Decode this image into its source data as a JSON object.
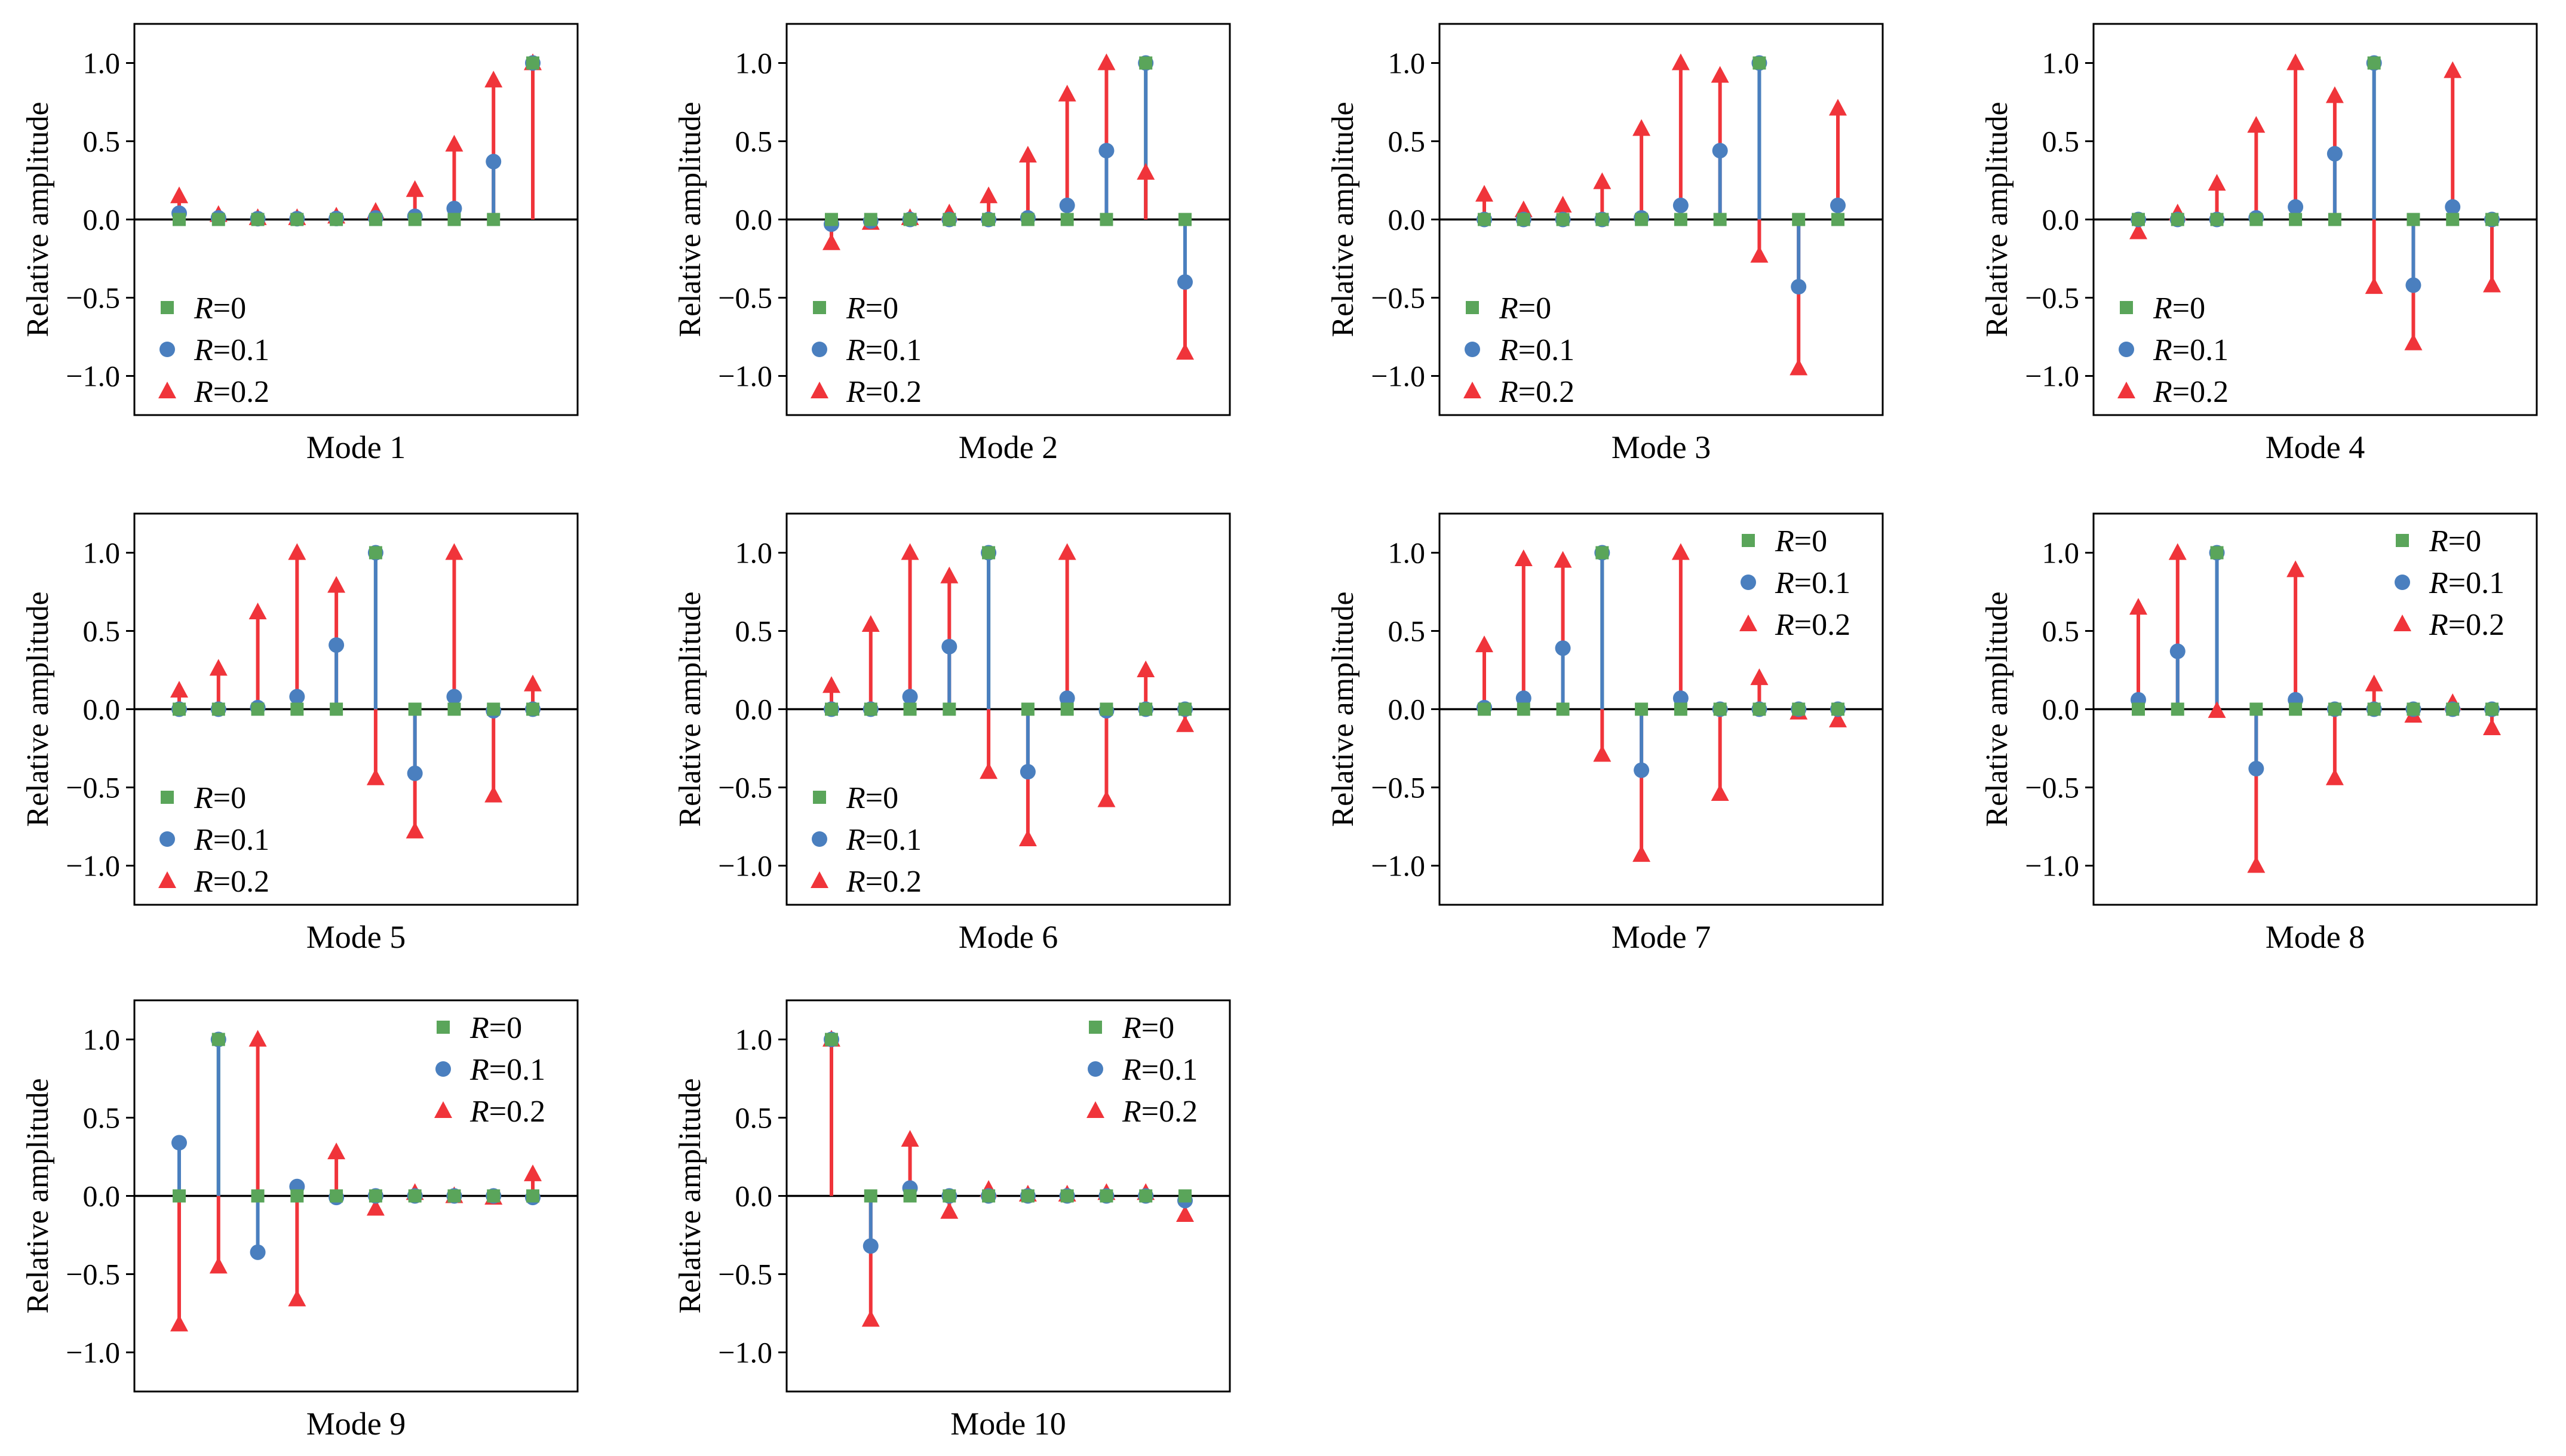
{
  "colors": {
    "r0": "#5aa55a",
    "r01": "#4a7fbf",
    "r02": "#f0343a"
  },
  "y_ticks": [
    1.0,
    0.5,
    0.0,
    -0.5,
    -1.0
  ],
  "y_tick_labels": [
    "1.0",
    "0.5",
    "0.0",
    "−0.5",
    "−1.0"
  ],
  "legend": [
    {
      "key": "r0",
      "prefix": "R",
      "suffix": "=0",
      "marker": "square"
    },
    {
      "key": "r01",
      "prefix": "R",
      "suffix": "=0.1",
      "marker": "circle"
    },
    {
      "key": "r02",
      "prefix": "R",
      "suffix": "=0.2",
      "marker": "triangle"
    }
  ],
  "chart_data": [
    {
      "type": "stem",
      "title": "Mode 1",
      "ylabel": "Relative amplitude",
      "ylim": [
        -1.25,
        1.25
      ],
      "x": [
        1,
        2,
        3,
        4,
        5,
        6,
        7,
        8,
        9,
        10
      ],
      "legend_position": "bottom-left",
      "series": [
        {
          "name": "R=0",
          "values": [
            0,
            0,
            0,
            0,
            0,
            0,
            0,
            0,
            0,
            1.0
          ]
        },
        {
          "name": "R=0.1",
          "values": [
            0.04,
            0.01,
            0.005,
            0.005,
            0.006,
            0.01,
            0.02,
            0.07,
            0.37,
            1.0
          ]
        },
        {
          "name": "R=0.2",
          "values": [
            0.15,
            0.03,
            0.01,
            0.01,
            0.02,
            0.05,
            0.19,
            0.48,
            0.89,
            1.0
          ]
        }
      ]
    },
    {
      "type": "stem",
      "title": "Mode 2",
      "ylabel": "Relative amplitude",
      "ylim": [
        -1.25,
        1.25
      ],
      "x": [
        1,
        2,
        3,
        4,
        5,
        6,
        7,
        8,
        9,
        10
      ],
      "legend_position": "bottom-left",
      "series": [
        {
          "name": "R=0",
          "values": [
            0,
            0,
            0,
            0,
            0,
            0,
            0,
            0,
            1.0,
            0
          ]
        },
        {
          "name": "R=0.1",
          "values": [
            -0.03,
            -0.01,
            0.0,
            0.0,
            0.0,
            0.01,
            0.09,
            0.44,
            1.0,
            -0.4
          ]
        },
        {
          "name": "R=0.2",
          "values": [
            -0.15,
            -0.02,
            0.01,
            0.04,
            0.15,
            0.41,
            0.8,
            1.0,
            0.3,
            -0.85
          ]
        }
      ]
    },
    {
      "type": "stem",
      "title": "Mode 3",
      "ylabel": "Relative amplitude",
      "ylim": [
        -1.25,
        1.25
      ],
      "x": [
        1,
        2,
        3,
        4,
        5,
        6,
        7,
        8,
        9,
        10
      ],
      "legend_position": "bottom-left",
      "series": [
        {
          "name": "R=0",
          "values": [
            0,
            0,
            0,
            0,
            0,
            0,
            0,
            1.0,
            0,
            0
          ]
        },
        {
          "name": "R=0.1",
          "values": [
            0.0,
            0.0,
            0.0,
            0.0,
            0.01,
            0.09,
            0.44,
            1.0,
            -0.43,
            0.09
          ]
        },
        {
          "name": "R=0.2",
          "values": [
            0.16,
            0.06,
            0.09,
            0.24,
            0.58,
            1.0,
            0.92,
            -0.23,
            -0.95,
            0.71
          ]
        }
      ]
    },
    {
      "type": "stem",
      "title": "Mode 4",
      "ylabel": "Relative amplitude",
      "ylim": [
        -1.25,
        1.25
      ],
      "x": [
        1,
        2,
        3,
        4,
        5,
        6,
        7,
        8,
        9,
        10
      ],
      "legend_position": "bottom-left",
      "series": [
        {
          "name": "R=0",
          "values": [
            0,
            0,
            0,
            0,
            0,
            0,
            1.0,
            0,
            0,
            0
          ]
        },
        {
          "name": "R=0.1",
          "values": [
            0.0,
            0.0,
            0.0,
            0.01,
            0.08,
            0.42,
            1.0,
            -0.42,
            0.08,
            0.0
          ]
        },
        {
          "name": "R=0.2",
          "values": [
            -0.08,
            0.04,
            0.23,
            0.6,
            1.0,
            0.79,
            -0.43,
            -0.79,
            0.95,
            -0.42
          ]
        }
      ]
    },
    {
      "type": "stem",
      "title": "Mode 5",
      "ylabel": "Relative amplitude",
      "ylim": [
        -1.25,
        1.25
      ],
      "x": [
        1,
        2,
        3,
        4,
        5,
        6,
        7,
        8,
        9,
        10
      ],
      "legend_position": "bottom-left",
      "series": [
        {
          "name": "R=0",
          "values": [
            0,
            0,
            0,
            0,
            0,
            1.0,
            0,
            0,
            0,
            0
          ]
        },
        {
          "name": "R=0.1",
          "values": [
            0.0,
            0.0,
            0.01,
            0.08,
            0.41,
            1.0,
            -0.41,
            0.08,
            -0.01,
            0.0
          ]
        },
        {
          "name": "R=0.2",
          "values": [
            0.12,
            0.26,
            0.62,
            1.0,
            0.79,
            -0.44,
            -0.78,
            1.0,
            -0.55,
            0.16
          ]
        }
      ]
    },
    {
      "type": "stem",
      "title": "Mode 6",
      "ylabel": "Relative amplitude",
      "ylim": [
        -1.25,
        1.25
      ],
      "x": [
        1,
        2,
        3,
        4,
        5,
        6,
        7,
        8,
        9,
        10
      ],
      "legend_position": "bottom-left",
      "series": [
        {
          "name": "R=0",
          "values": [
            0,
            0,
            0,
            0,
            1.0,
            0,
            0,
            0,
            0,
            0
          ]
        },
        {
          "name": "R=0.1",
          "values": [
            0.0,
            0.0,
            0.08,
            0.4,
            1.0,
            -0.4,
            0.07,
            -0.01,
            0.0,
            0.0
          ]
        },
        {
          "name": "R=0.2",
          "values": [
            0.15,
            0.54,
            1.0,
            0.85,
            -0.4,
            -0.83,
            1.0,
            -0.58,
            0.25,
            -0.1
          ]
        }
      ]
    },
    {
      "type": "stem",
      "title": "Mode 7",
      "ylabel": "Relative amplitude",
      "ylim": [
        -1.25,
        1.25
      ],
      "x": [
        1,
        2,
        3,
        4,
        5,
        6,
        7,
        8,
        9,
        10
      ],
      "legend_position": "top-right",
      "series": [
        {
          "name": "R=0",
          "values": [
            0,
            0,
            0,
            1.0,
            0,
            0,
            0,
            0,
            0,
            0
          ]
        },
        {
          "name": "R=0.1",
          "values": [
            0.01,
            0.07,
            0.39,
            1.0,
            -0.39,
            0.07,
            0.0,
            0.0,
            0.0,
            0.0
          ]
        },
        {
          "name": "R=0.2",
          "values": [
            0.41,
            0.96,
            0.95,
            -0.29,
            -0.93,
            1.0,
            -0.54,
            0.2,
            -0.02,
            -0.07
          ]
        }
      ]
    },
    {
      "type": "stem",
      "title": "Mode 8",
      "ylabel": "Relative amplitude",
      "ylim": [
        -1.25,
        1.25
      ],
      "x": [
        1,
        2,
        3,
        4,
        5,
        6,
        7,
        8,
        9,
        10
      ],
      "legend_position": "top-right",
      "series": [
        {
          "name": "R=0",
          "values": [
            0,
            0,
            1.0,
            0,
            0,
            0,
            0,
            0,
            0,
            0
          ]
        },
        {
          "name": "R=0.1",
          "values": [
            0.06,
            0.37,
            1.0,
            -0.38,
            0.06,
            0.0,
            0.0,
            0.0,
            0.0,
            0.0
          ]
        },
        {
          "name": "R=0.2",
          "values": [
            0.65,
            1.0,
            -0.01,
            -1.0,
            0.89,
            -0.44,
            0.16,
            -0.04,
            0.04,
            -0.12
          ]
        }
      ]
    },
    {
      "type": "stem",
      "title": "Mode 9",
      "ylabel": "Relative amplitude",
      "ylim": [
        -1.25,
        1.25
      ],
      "x": [
        1,
        2,
        3,
        4,
        5,
        6,
        7,
        8,
        9,
        10
      ],
      "legend_position": "top-right",
      "series": [
        {
          "name": "R=0",
          "values": [
            0,
            1.0,
            0,
            0,
            0,
            0,
            0,
            0,
            0,
            0
          ]
        },
        {
          "name": "R=0.1",
          "values": [
            0.34,
            1.0,
            -0.36,
            0.06,
            -0.01,
            0.0,
            0.0,
            0.0,
            0.0,
            -0.01
          ]
        },
        {
          "name": "R=0.2",
          "values": [
            -0.82,
            -0.45,
            1.0,
            -0.66,
            0.28,
            -0.08,
            0.02,
            0.0,
            -0.01,
            0.14
          ]
        }
      ]
    },
    {
      "type": "stem",
      "title": "Mode 10",
      "ylabel": "Relative amplitude",
      "ylim": [
        -1.25,
        1.25
      ],
      "x": [
        1,
        2,
        3,
        4,
        5,
        6,
        7,
        8,
        9,
        10
      ],
      "legend_position": "top-right",
      "series": [
        {
          "name": "R=0",
          "values": [
            1.0,
            0,
            0,
            0,
            0,
            0,
            0,
            0,
            0,
            0
          ]
        },
        {
          "name": "R=0.1",
          "values": [
            1.0,
            -0.32,
            0.05,
            0.0,
            0.0,
            0.0,
            0.0,
            0.0,
            0.0,
            -0.03
          ]
        },
        {
          "name": "R=0.2",
          "values": [
            1.0,
            -0.79,
            0.36,
            -0.1,
            0.04,
            0.01,
            0.01,
            0.02,
            0.02,
            -0.12
          ]
        }
      ]
    }
  ]
}
